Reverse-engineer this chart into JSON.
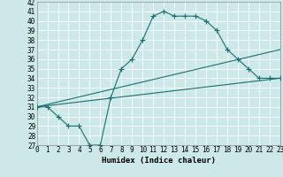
{
  "title": "",
  "xlabel": "Humidex (Indice chaleur)",
  "background_color": "#cce8e8",
  "line_color": "#1a7070",
  "grid_color": "#ffffff",
  "x_min": 0,
  "x_max": 23,
  "y_min": 27,
  "y_max": 42,
  "line1_x": [
    0,
    1,
    2,
    3,
    4,
    5,
    6,
    7,
    8,
    9,
    10,
    11,
    12,
    13,
    14,
    15,
    16,
    17,
    18,
    19,
    20,
    21,
    22,
    23
  ],
  "line1_y": [
    31,
    31,
    30,
    29,
    29,
    27,
    27,
    32,
    35,
    36,
    38,
    40.5,
    41,
    40.5,
    40.5,
    40.5,
    40,
    39,
    37,
    36,
    35,
    34,
    34,
    34
  ],
  "line2_x": [
    0,
    23
  ],
  "line2_y": [
    31,
    34
  ],
  "line3_x": [
    0,
    23
  ],
  "line3_y": [
    31,
    37
  ],
  "xlabel_fontsize": 6.5,
  "tick_fontsize": 5.5
}
